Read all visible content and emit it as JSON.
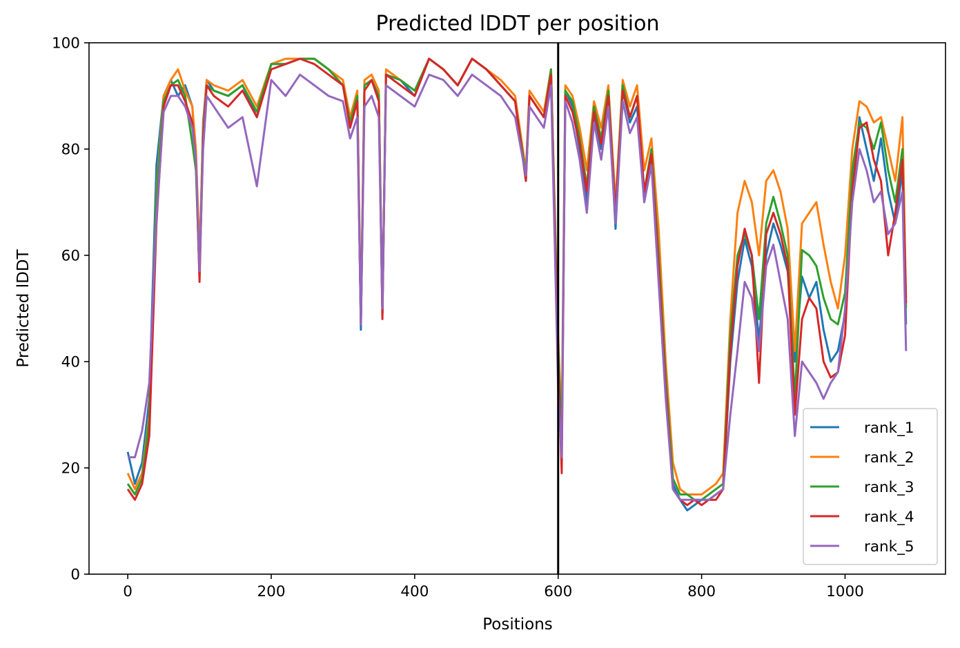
{
  "chart_data": {
    "type": "line",
    "title": "Predicted lDDT per position",
    "xlabel": "Positions",
    "ylabel": "Predicted lDDT",
    "xlim": [
      -54,
      1140
    ],
    "ylim": [
      0,
      100
    ],
    "xticks": [
      0,
      200,
      400,
      600,
      800,
      1000
    ],
    "yticks": [
      0,
      20,
      40,
      60,
      80,
      100
    ],
    "grid": false,
    "legend_position": "lower right",
    "chain_break": 600,
    "series": [
      {
        "name": "rank_1",
        "color": "#1f77b4",
        "x": [
          0,
          10,
          20,
          30,
          40,
          50,
          60,
          70,
          80,
          90,
          95,
          100,
          105,
          110,
          120,
          140,
          160,
          180,
          200,
          220,
          240,
          260,
          280,
          300,
          310,
          320,
          325,
          330,
          340,
          350,
          355,
          360,
          380,
          400,
          420,
          440,
          460,
          480,
          500,
          520,
          540,
          555,
          560,
          580,
          590,
          600,
          605,
          610,
          620,
          630,
          640,
          650,
          660,
          670,
          680,
          690,
          700,
          710,
          720,
          730,
          740,
          750,
          760,
          770,
          780,
          790,
          800,
          810,
          820,
          830,
          840,
          850,
          860,
          870,
          880,
          890,
          900,
          910,
          920,
          930,
          940,
          950,
          960,
          970,
          980,
          990,
          1000,
          1010,
          1020,
          1030,
          1040,
          1050,
          1060,
          1070,
          1080,
          1085
        ],
        "values": [
          23,
          17,
          21,
          33,
          77,
          90,
          93,
          90,
          92,
          88,
          77,
          57,
          85,
          93,
          91,
          90,
          92,
          86,
          96,
          96,
          97,
          97,
          95,
          92,
          85,
          90,
          46,
          92,
          93,
          90,
          49,
          94,
          93,
          90,
          97,
          95,
          92,
          97,
          95,
          92,
          89,
          74,
          90,
          86,
          95,
          42,
          23,
          91,
          88,
          80,
          70,
          86,
          80,
          90,
          65,
          91,
          85,
          88,
          70,
          79,
          58,
          35,
          17,
          14,
          12,
          13,
          14,
          14,
          15,
          16,
          40,
          55,
          63,
          58,
          44,
          60,
          66,
          62,
          57,
          40,
          56,
          52,
          55,
          46,
          40,
          42,
          49,
          72,
          86,
          80,
          74,
          82,
          72,
          66,
          76,
          47
        ]
      },
      {
        "name": "rank_2",
        "color": "#ff7f0e",
        "x": [
          0,
          10,
          20,
          30,
          40,
          50,
          60,
          70,
          80,
          90,
          95,
          100,
          105,
          110,
          120,
          140,
          160,
          180,
          200,
          220,
          240,
          260,
          280,
          300,
          310,
          320,
          325,
          330,
          340,
          350,
          355,
          360,
          380,
          400,
          420,
          440,
          460,
          480,
          500,
          520,
          540,
          555,
          560,
          580,
          590,
          600,
          605,
          610,
          620,
          630,
          640,
          650,
          660,
          670,
          680,
          690,
          700,
          710,
          720,
          730,
          740,
          750,
          760,
          770,
          780,
          790,
          800,
          810,
          820,
          830,
          840,
          850,
          860,
          870,
          880,
          890,
          900,
          910,
          920,
          930,
          940,
          950,
          960,
          970,
          980,
          990,
          1000,
          1010,
          1020,
          1030,
          1040,
          1050,
          1060,
          1070,
          1080,
          1085
        ],
        "values": [
          19,
          16,
          19,
          30,
          72,
          90,
          93,
          95,
          91,
          88,
          80,
          60,
          84,
          93,
          92,
          91,
          93,
          88,
          96,
          97,
          97,
          97,
          95,
          93,
          86,
          91,
          48,
          93,
          94,
          91,
          50,
          95,
          93,
          91,
          97,
          95,
          92,
          97,
          95,
          93,
          90,
          76,
          91,
          87,
          95,
          45,
          28,
          92,
          90,
          84,
          76,
          89,
          84,
          92,
          70,
          93,
          88,
          92,
          76,
          82,
          65,
          40,
          21,
          16,
          15,
          15,
          15,
          16,
          17,
          19,
          48,
          68,
          74,
          70,
          60,
          74,
          76,
          72,
          65,
          42,
          66,
          68,
          70,
          62,
          55,
          50,
          60,
          80,
          89,
          88,
          85,
          86,
          80,
          74,
          86,
          52
        ]
      },
      {
        "name": "rank_3",
        "color": "#2ca02c",
        "x": [
          0,
          10,
          20,
          30,
          40,
          50,
          60,
          70,
          80,
          90,
          95,
          100,
          105,
          110,
          120,
          140,
          160,
          180,
          200,
          220,
          240,
          260,
          280,
          300,
          310,
          320,
          325,
          330,
          340,
          350,
          355,
          360,
          380,
          400,
          420,
          440,
          460,
          480,
          500,
          520,
          540,
          555,
          560,
          580,
          590,
          600,
          605,
          610,
          620,
          630,
          640,
          650,
          660,
          670,
          680,
          690,
          700,
          710,
          720,
          730,
          740,
          750,
          760,
          770,
          780,
          790,
          800,
          810,
          820,
          830,
          840,
          850,
          860,
          870,
          880,
          890,
          900,
          910,
          920,
          930,
          940,
          950,
          960,
          970,
          980,
          990,
          1000,
          1010,
          1020,
          1030,
          1040,
          1050,
          1060,
          1070,
          1080,
          1085
        ],
        "values": [
          17,
          15,
          18,
          29,
          71,
          89,
          92,
          93,
          90,
          81,
          76,
          56,
          83,
          92,
          91,
          90,
          92,
          87,
          96,
          96,
          97,
          97,
          95,
          92,
          85,
          90,
          47,
          92,
          93,
          90,
          49,
          94,
          93,
          91,
          97,
          95,
          92,
          97,
          95,
          92,
          89,
          75,
          90,
          86,
          95,
          43,
          24,
          91,
          89,
          82,
          73,
          88,
          82,
          91,
          68,
          92,
          86,
          90,
          72,
          80,
          60,
          37,
          18,
          15,
          15,
          14,
          14,
          15,
          16,
          17,
          45,
          60,
          64,
          60,
          48,
          66,
          71,
          66,
          60,
          33,
          61,
          60,
          58,
          52,
          48,
          47,
          53,
          76,
          85,
          84,
          80,
          85,
          76,
          70,
          80,
          50
        ]
      },
      {
        "name": "rank_4",
        "color": "#d62728",
        "x": [
          0,
          10,
          20,
          30,
          40,
          50,
          60,
          70,
          80,
          90,
          95,
          100,
          105,
          110,
          120,
          140,
          160,
          180,
          200,
          220,
          240,
          260,
          280,
          300,
          310,
          320,
          325,
          330,
          340,
          350,
          355,
          360,
          380,
          400,
          420,
          440,
          460,
          480,
          500,
          520,
          540,
          555,
          560,
          580,
          590,
          600,
          605,
          610,
          620,
          630,
          640,
          650,
          660,
          670,
          680,
          690,
          700,
          710,
          720,
          730,
          740,
          750,
          760,
          770,
          780,
          790,
          800,
          810,
          820,
          830,
          840,
          850,
          860,
          870,
          880,
          890,
          900,
          910,
          920,
          930,
          940,
          950,
          960,
          970,
          980,
          990,
          1000,
          1010,
          1020,
          1030,
          1040,
          1050,
          1060,
          1070,
          1080,
          1085
        ],
        "values": [
          16,
          14,
          17,
          26,
          66,
          88,
          92,
          92,
          89,
          85,
          78,
          55,
          82,
          92,
          90,
          88,
          91,
          86,
          95,
          96,
          97,
          96,
          94,
          92,
          84,
          89,
          47,
          91,
          93,
          89,
          48,
          94,
          92,
          90,
          97,
          95,
          92,
          97,
          95,
          92,
          89,
          74,
          90,
          86,
          94,
          40,
          19,
          90,
          87,
          81,
          72,
          87,
          81,
          90,
          68,
          91,
          86,
          90,
          72,
          79,
          58,
          35,
          16,
          14,
          13,
          14,
          13,
          14,
          14,
          16,
          42,
          58,
          65,
          60,
          36,
          64,
          68,
          64,
          58,
          30,
          48,
          52,
          50,
          40,
          37,
          38,
          45,
          72,
          84,
          85,
          78,
          74,
          60,
          68,
          78,
          51
        ]
      },
      {
        "name": "rank_5",
        "color": "#9467bd",
        "x": [
          0,
          10,
          20,
          30,
          40,
          50,
          60,
          70,
          80,
          90,
          95,
          100,
          105,
          110,
          120,
          140,
          160,
          180,
          200,
          220,
          240,
          260,
          280,
          300,
          310,
          320,
          325,
          330,
          340,
          350,
          355,
          360,
          380,
          400,
          420,
          440,
          460,
          480,
          500,
          520,
          540,
          555,
          560,
          580,
          590,
          600,
          605,
          610,
          620,
          630,
          640,
          650,
          660,
          670,
          680,
          690,
          700,
          710,
          720,
          730,
          740,
          750,
          760,
          770,
          780,
          790,
          800,
          810,
          820,
          830,
          840,
          850,
          860,
          870,
          880,
          890,
          900,
          910,
          920,
          930,
          940,
          950,
          960,
          970,
          980,
          990,
          1000,
          1010,
          1020,
          1030,
          1040,
          1050,
          1060,
          1070,
          1080,
          1085
        ],
        "values": [
          22,
          22,
          27,
          36,
          67,
          87,
          90,
          90,
          88,
          84,
          78,
          57,
          80,
          90,
          88,
          84,
          86,
          73,
          93,
          90,
          94,
          92,
          90,
          89,
          82,
          86,
          47,
          88,
          90,
          86,
          50,
          92,
          90,
          88,
          94,
          93,
          90,
          94,
          92,
          90,
          86,
          75,
          88,
          84,
          92,
          35,
          22,
          89,
          85,
          78,
          68,
          85,
          78,
          88,
          66,
          89,
          83,
          86,
          70,
          77,
          55,
          33,
          16,
          14,
          14,
          14,
          14,
          14,
          15,
          16,
          30,
          42,
          55,
          52,
          42,
          58,
          62,
          55,
          48,
          26,
          40,
          38,
          36,
          33,
          36,
          38,
          50,
          70,
          80,
          76,
          70,
          72,
          64,
          66,
          72,
          42
        ]
      }
    ]
  }
}
